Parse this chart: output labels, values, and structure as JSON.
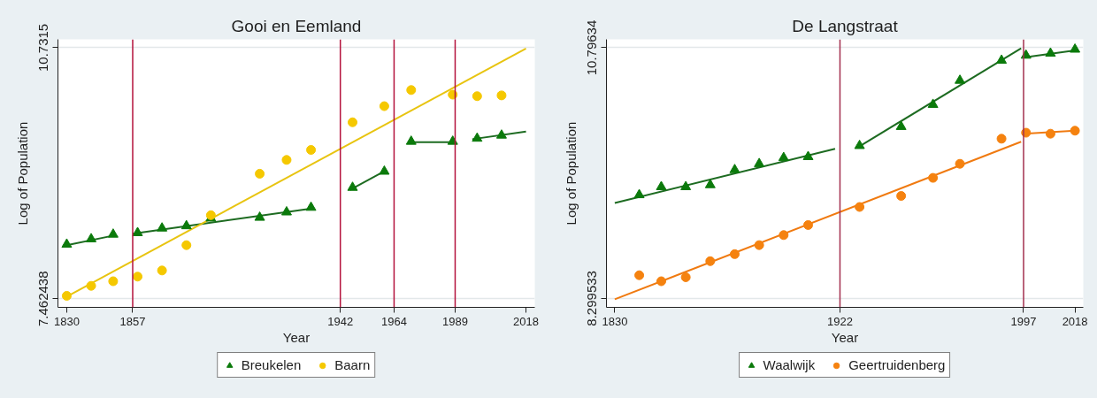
{
  "chart_data": [
    {
      "type": "scatter",
      "title": "Gooi en Eemland",
      "xlabel": "Year",
      "ylabel": "Log of Population",
      "xlim": [
        1826.4,
        2021.6
      ],
      "ylim": [
        7.35,
        10.84
      ],
      "xticks": [
        1830,
        1857,
        1942,
        1964,
        1989,
        2018
      ],
      "yticks": [
        7.462438,
        10.7315
      ],
      "grid": "y",
      "legend": "bottom",
      "ref_lines": [
        {
          "axis": "x",
          "value": 1857,
          "color": "#b4123c"
        },
        {
          "axis": "x",
          "value": 1942,
          "color": "#b4123c"
        },
        {
          "axis": "x",
          "value": 1964,
          "color": "#b4123c"
        },
        {
          "axis": "x",
          "value": 1989,
          "color": "#b4123c"
        }
      ],
      "series": [
        {
          "name": "Breukelen",
          "marker": "triangle",
          "color": "#0b7a0b",
          "x": [
            1830,
            1840,
            1849,
            1859,
            1869,
            1879,
            1889,
            1909,
            1920,
            1930,
            1947,
            1960,
            1971,
            1988,
            1998,
            2008
          ],
          "values": [
            8.17,
            8.24,
            8.3,
            8.32,
            8.38,
            8.41,
            8.51,
            8.52,
            8.59,
            8.65,
            8.91,
            9.12,
            9.51,
            9.51,
            9.55,
            9.59
          ]
        },
        {
          "name": "Baarn",
          "marker": "circle",
          "color": "#f5c800",
          "x": [
            1830,
            1840,
            1849,
            1859,
            1869,
            1879,
            1889,
            1909,
            1920,
            1930,
            1947,
            1960,
            1971,
            1988,
            1998,
            2008
          ],
          "values": [
            7.5,
            7.63,
            7.69,
            7.75,
            7.83,
            8.16,
            8.55,
            9.09,
            9.27,
            9.4,
            9.76,
            9.97,
            10.18,
            10.12,
            10.1,
            10.11
          ]
        },
        {
          "type": "line",
          "color": "#1d6b21",
          "x": [
            1830,
            1850
          ],
          "values": [
            8.16,
            8.29
          ]
        },
        {
          "type": "line",
          "color": "#1d6b21",
          "x": [
            1857,
            1931
          ],
          "values": [
            8.31,
            8.64
          ]
        },
        {
          "type": "line",
          "color": "#1d6b21",
          "x": [
            1946,
            1961
          ],
          "values": [
            8.88,
            9.14
          ]
        },
        {
          "type": "line",
          "color": "#1d6b21",
          "x": [
            1970,
            1989
          ],
          "values": [
            9.5,
            9.5
          ]
        },
        {
          "type": "line",
          "color": "#1d6b21",
          "x": [
            1996,
            2018
          ],
          "values": [
            9.54,
            9.64
          ]
        },
        {
          "type": "line",
          "color": "#e8c410",
          "x": [
            1830,
            2018
          ],
          "values": [
            7.49,
            10.72
          ]
        }
      ]
    },
    {
      "type": "scatter",
      "title": "De Langstraat",
      "xlabel": "Year",
      "ylabel": "Log of Population",
      "xlim": [
        1826.6,
        2021.4
      ],
      "ylim": [
        8.21,
        10.88
      ],
      "xticks": [
        1830,
        1922,
        1997,
        2018
      ],
      "yticks": [
        8.299533,
        10.79634
      ],
      "grid": "y",
      "legend": "bottom",
      "ref_lines": [
        {
          "axis": "x",
          "value": 1922,
          "color": "#a3304f"
        },
        {
          "axis": "x",
          "value": 1997,
          "color": "#a3304f"
        }
      ],
      "series": [
        {
          "name": "Waalwijk",
          "marker": "triangle",
          "color": "#0b7a0b",
          "x": [
            1840,
            1849,
            1859,
            1869,
            1879,
            1889,
            1899,
            1909,
            1930,
            1947,
            1960,
            1971,
            1988,
            1998,
            2008,
            2018
          ],
          "values": [
            9.33,
            9.41,
            9.41,
            9.43,
            9.58,
            9.64,
            9.7,
            9.71,
            9.82,
            10.01,
            10.23,
            10.47,
            10.67,
            10.72,
            10.74,
            10.78
          ]
        },
        {
          "name": "Geertruidenberg",
          "marker": "circle",
          "color": "#f5820f",
          "x": [
            1840,
            1849,
            1859,
            1869,
            1879,
            1889,
            1899,
            1909,
            1930,
            1947,
            1960,
            1971,
            1988,
            1998,
            2008,
            2018
          ],
          "values": [
            8.53,
            8.47,
            8.51,
            8.67,
            8.74,
            8.83,
            8.93,
            9.03,
            9.21,
            9.32,
            9.5,
            9.64,
            9.89,
            9.95,
            9.94,
            9.97
          ]
        },
        {
          "type": "line",
          "color": "#1d6b21",
          "x": [
            1830,
            1920
          ],
          "values": [
            9.25,
            9.79
          ]
        },
        {
          "type": "line",
          "color": "#1d6b21",
          "x": [
            1929,
            1996
          ],
          "values": [
            9.8,
            10.79
          ]
        },
        {
          "type": "line",
          "color": "#1d6b21",
          "x": [
            1997,
            2018
          ],
          "values": [
            10.7,
            10.77
          ]
        },
        {
          "type": "line",
          "color": "#f07a10",
          "x": [
            1830,
            1996
          ],
          "values": [
            8.29,
            9.86
          ]
        },
        {
          "type": "line",
          "color": "#f07a10",
          "x": [
            1997,
            2018
          ],
          "values": [
            9.94,
            9.97
          ]
        }
      ]
    }
  ]
}
